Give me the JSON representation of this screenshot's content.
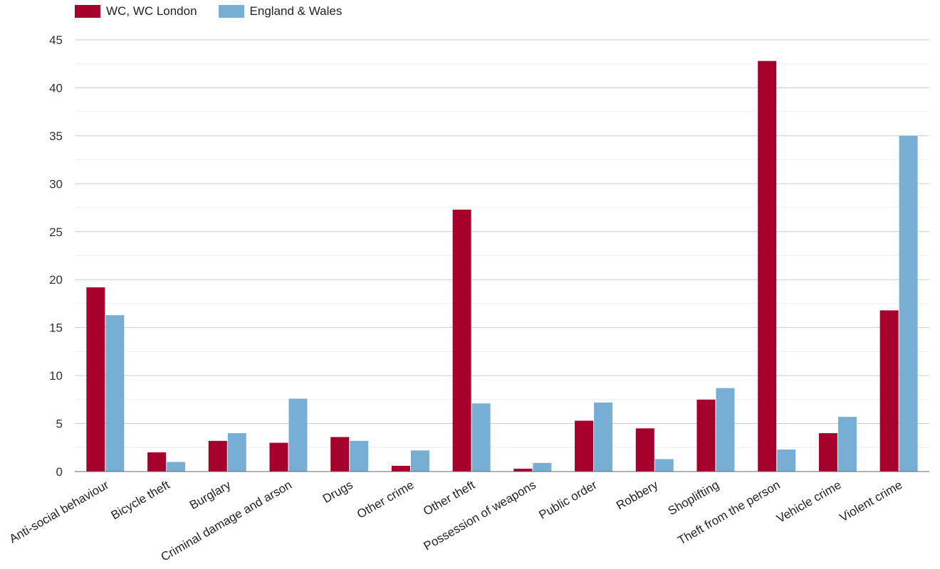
{
  "legend": {
    "series_1": "WC, WC London",
    "series_2": "England & Wales"
  },
  "colors": {
    "series_1": "#a6002c",
    "series_2": "#77aed4",
    "grid_major": "#cccccc",
    "grid_minor": "#eeeeee",
    "axis": "#666666",
    "text": "#222222"
  },
  "chart_data": {
    "type": "bar",
    "categories": [
      "Anti-social behaviour",
      "Bicycle theft",
      "Burglary",
      "Criminal damage and arson",
      "Drugs",
      "Other crime",
      "Other theft",
      "Possession of weapons",
      "Public order",
      "Robbery",
      "Shoplifting",
      "Theft from the person",
      "Vehicle crime",
      "Violent crime"
    ],
    "series": [
      {
        "name": "WC, WC London",
        "values": [
          19.2,
          2.0,
          3.2,
          3.0,
          3.6,
          0.6,
          27.3,
          0.3,
          5.3,
          4.5,
          7.5,
          42.8,
          4.0,
          16.8
        ]
      },
      {
        "name": "England & Wales",
        "values": [
          16.3,
          1.0,
          4.0,
          7.6,
          3.2,
          2.2,
          7.1,
          0.9,
          7.2,
          1.3,
          8.7,
          2.3,
          5.7,
          35.0
        ]
      }
    ],
    "yticks": [
      0,
      5,
      10,
      15,
      20,
      25,
      30,
      35,
      40,
      45
    ],
    "ylim": [
      0,
      45
    ],
    "grid": true,
    "legend_position": "top-left",
    "title": "",
    "xlabel": "",
    "ylabel": ""
  }
}
